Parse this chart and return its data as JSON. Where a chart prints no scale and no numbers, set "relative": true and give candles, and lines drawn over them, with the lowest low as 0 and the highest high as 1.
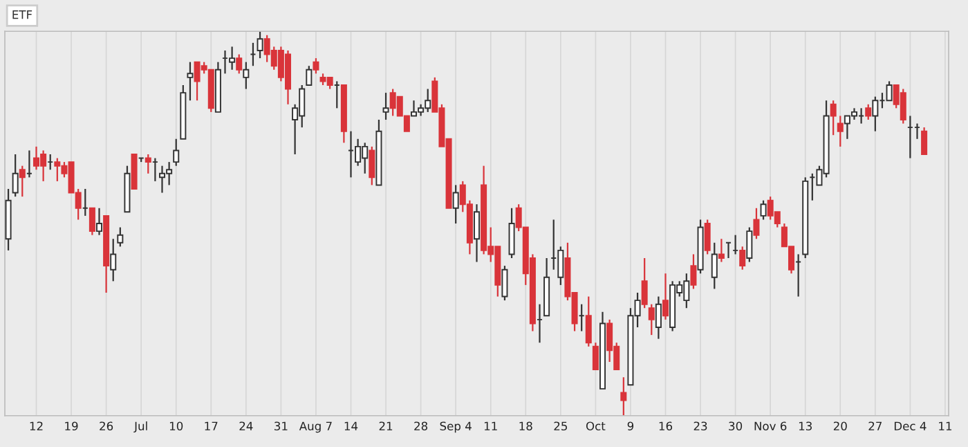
{
  "chart_data": {
    "type": "candlestick",
    "title": "ETF",
    "relative": true,
    "grid": "x",
    "tick_labels": "x",
    "categories": [
      null,
      null,
      null,
      null,
      "12",
      null,
      null,
      null,
      null,
      "19",
      null,
      null,
      null,
      null,
      "26",
      null,
      null,
      null,
      null,
      "Jul",
      null,
      null,
      null,
      null,
      "10",
      null,
      null,
      null,
      null,
      "17",
      null,
      null,
      null,
      null,
      "24",
      null,
      null,
      null,
      null,
      "31",
      null,
      null,
      null,
      null,
      "Aug 7",
      null,
      null,
      null,
      null,
      "14",
      null,
      null,
      null,
      null,
      "21",
      null,
      null,
      null,
      null,
      "28",
      null,
      null,
      null,
      null,
      "Sep 4",
      null,
      null,
      null,
      null,
      "11",
      null,
      null,
      null,
      null,
      "18",
      null,
      null,
      null,
      null,
      "25",
      null,
      null,
      null,
      null,
      "Oct",
      null,
      null,
      null,
      null,
      "9",
      null,
      null,
      null,
      null,
      "16",
      null,
      null,
      null,
      null,
      "23",
      null,
      null,
      null,
      null,
      "30",
      null,
      null,
      null,
      null,
      "Nov 6",
      null,
      null,
      null,
      null,
      "13",
      null,
      null,
      null,
      null,
      "20",
      null,
      null,
      null,
      null,
      "27",
      null,
      null,
      null,
      null,
      "Dec 4",
      null,
      null,
      null,
      null,
      "11"
    ],
    "ohlc": [
      [
        0.46,
        0.59,
        0.43,
        0.56
      ],
      [
        0.58,
        0.68,
        0.57,
        0.63
      ],
      [
        0.64,
        0.65,
        0.57,
        0.62
      ],
      [
        0.63,
        0.69,
        0.62,
        0.63
      ],
      [
        0.67,
        0.7,
        0.64,
        0.65
      ],
      [
        0.68,
        0.69,
        0.61,
        0.65
      ],
      [
        0.66,
        0.68,
        0.64,
        0.66
      ],
      [
        0.66,
        0.67,
        0.61,
        0.65
      ],
      [
        0.65,
        0.66,
        0.62,
        0.63
      ],
      [
        0.66,
        0.66,
        0.58,
        0.58
      ],
      [
        0.58,
        0.59,
        0.51,
        0.54
      ],
      [
        0.54,
        0.59,
        0.52,
        0.54
      ],
      [
        0.54,
        0.54,
        0.47,
        0.48
      ],
      [
        0.48,
        0.54,
        0.47,
        0.5
      ],
      [
        0.52,
        0.52,
        0.32,
        0.39
      ],
      [
        0.38,
        0.46,
        0.35,
        0.42
      ],
      [
        0.45,
        0.49,
        0.44,
        0.47
      ],
      [
        0.53,
        0.65,
        0.53,
        0.63
      ],
      [
        0.68,
        0.68,
        0.59,
        0.59
      ],
      [
        0.67,
        0.67,
        0.66,
        0.67
      ],
      [
        0.67,
        0.68,
        0.63,
        0.66
      ],
      [
        0.66,
        0.67,
        0.61,
        0.66
      ],
      [
        0.62,
        0.65,
        0.58,
        0.63
      ],
      [
        0.63,
        0.66,
        0.6,
        0.64
      ],
      [
        0.66,
        0.72,
        0.65,
        0.69
      ],
      [
        0.72,
        0.86,
        0.72,
        0.84
      ],
      [
        0.88,
        0.92,
        0.82,
        0.89
      ],
      [
        0.92,
        0.92,
        0.82,
        0.87
      ],
      [
        0.91,
        0.92,
        0.89,
        0.9
      ],
      [
        0.9,
        0.9,
        0.79,
        0.8
      ],
      [
        0.79,
        0.92,
        0.79,
        0.9
      ],
      [
        0.93,
        0.95,
        0.89,
        0.93
      ],
      [
        0.92,
        0.96,
        0.9,
        0.93
      ],
      [
        0.93,
        0.94,
        0.89,
        0.9
      ],
      [
        0.88,
        0.92,
        0.85,
        0.9
      ],
      [
        0.94,
        0.97,
        0.91,
        0.94
      ],
      [
        0.95,
        1.0,
        0.93,
        0.98
      ],
      [
        0.98,
        0.99,
        0.92,
        0.94
      ],
      [
        0.95,
        0.96,
        0.9,
        0.91
      ],
      [
        0.95,
        0.96,
        0.87,
        0.88
      ],
      [
        0.94,
        0.95,
        0.81,
        0.85
      ],
      [
        0.77,
        0.81,
        0.68,
        0.8
      ],
      [
        0.78,
        0.86,
        0.75,
        0.85
      ],
      [
        0.86,
        0.91,
        0.86,
        0.9
      ],
      [
        0.92,
        0.93,
        0.89,
        0.9
      ],
      [
        0.88,
        0.89,
        0.86,
        0.87
      ],
      [
        0.88,
        0.88,
        0.85,
        0.86
      ],
      [
        0.86,
        0.87,
        0.8,
        0.86
      ],
      [
        0.86,
        0.86,
        0.71,
        0.74
      ],
      [
        0.69,
        0.74,
        0.62,
        0.69
      ],
      [
        0.66,
        0.72,
        0.65,
        0.7
      ],
      [
        0.67,
        0.71,
        0.63,
        0.7
      ],
      [
        0.69,
        0.7,
        0.6,
        0.62
      ],
      [
        0.6,
        0.77,
        0.6,
        0.74
      ],
      [
        0.79,
        0.84,
        0.77,
        0.8
      ],
      [
        0.84,
        0.85,
        0.78,
        0.8
      ],
      [
        0.83,
        0.83,
        0.78,
        0.78
      ],
      [
        0.78,
        0.78,
        0.74,
        0.74
      ],
      [
        0.78,
        0.82,
        0.78,
        0.79
      ],
      [
        0.79,
        0.81,
        0.78,
        0.8
      ],
      [
        0.8,
        0.85,
        0.79,
        0.82
      ],
      [
        0.87,
        0.88,
        0.79,
        0.79
      ],
      [
        0.8,
        0.81,
        0.7,
        0.7
      ],
      [
        0.72,
        0.72,
        0.54,
        0.54
      ],
      [
        0.54,
        0.6,
        0.5,
        0.58
      ],
      [
        0.6,
        0.61,
        0.53,
        0.55
      ],
      [
        0.55,
        0.56,
        0.42,
        0.45
      ],
      [
        0.46,
        0.55,
        0.4,
        0.53
      ],
      [
        0.6,
        0.65,
        0.42,
        0.43
      ],
      [
        0.44,
        0.49,
        0.4,
        0.42
      ],
      [
        0.44,
        0.44,
        0.31,
        0.34
      ],
      [
        0.31,
        0.39,
        0.3,
        0.38
      ],
      [
        0.42,
        0.54,
        0.41,
        0.5
      ],
      [
        0.54,
        0.55,
        0.48,
        0.49
      ],
      [
        0.49,
        0.49,
        0.34,
        0.37
      ],
      [
        0.41,
        0.42,
        0.22,
        0.24
      ],
      [
        0.25,
        0.29,
        0.19,
        0.25
      ],
      [
        0.26,
        0.41,
        0.26,
        0.36
      ],
      [
        0.41,
        0.51,
        0.38,
        0.41
      ],
      [
        0.36,
        0.44,
        0.34,
        0.43
      ],
      [
        0.41,
        0.45,
        0.3,
        0.31
      ],
      [
        0.32,
        0.32,
        0.22,
        0.24
      ],
      [
        0.26,
        0.29,
        0.22,
        0.26
      ],
      [
        0.26,
        0.31,
        0.18,
        0.19
      ],
      [
        0.18,
        0.19,
        0.12,
        0.12
      ],
      [
        0.07,
        0.27,
        0.07,
        0.24
      ],
      [
        0.24,
        0.25,
        0.14,
        0.17
      ],
      [
        0.18,
        0.19,
        0.12,
        0.12
      ],
      [
        0.06,
        0.1,
        0.0,
        0.04
      ],
      [
        0.08,
        0.28,
        0.08,
        0.26
      ],
      [
        0.26,
        0.32,
        0.23,
        0.3
      ],
      [
        0.35,
        0.41,
        0.28,
        0.29
      ],
      [
        0.28,
        0.29,
        0.21,
        0.25
      ],
      [
        0.23,
        0.31,
        0.2,
        0.29
      ],
      [
        0.3,
        0.37,
        0.25,
        0.26
      ],
      [
        0.23,
        0.35,
        0.22,
        0.34
      ],
      [
        0.32,
        0.35,
        0.31,
        0.34
      ],
      [
        0.3,
        0.37,
        0.28,
        0.35
      ],
      [
        0.39,
        0.42,
        0.33,
        0.34
      ],
      [
        0.38,
        0.51,
        0.37,
        0.49
      ],
      [
        0.5,
        0.51,
        0.42,
        0.43
      ],
      [
        0.36,
        0.45,
        0.33,
        0.42
      ],
      [
        0.42,
        0.46,
        0.4,
        0.41
      ],
      [
        0.45,
        0.45,
        0.41,
        0.45
      ],
      [
        0.43,
        0.47,
        0.42,
        0.43
      ],
      [
        0.43,
        0.44,
        0.38,
        0.39
      ],
      [
        0.41,
        0.49,
        0.4,
        0.48
      ],
      [
        0.51,
        0.54,
        0.46,
        0.47
      ],
      [
        0.52,
        0.56,
        0.51,
        0.55
      ],
      [
        0.56,
        0.57,
        0.51,
        0.52
      ],
      [
        0.53,
        0.53,
        0.49,
        0.5
      ],
      [
        0.49,
        0.5,
        0.44,
        0.44
      ],
      [
        0.44,
        0.44,
        0.37,
        0.38
      ],
      [
        0.4,
        0.42,
        0.31,
        0.4
      ],
      [
        0.42,
        0.62,
        0.41,
        0.61
      ],
      [
        0.62,
        0.63,
        0.56,
        0.62
      ],
      [
        0.6,
        0.65,
        0.6,
        0.64
      ],
      [
        0.63,
        0.82,
        0.62,
        0.78
      ],
      [
        0.81,
        0.82,
        0.73,
        0.78
      ],
      [
        0.76,
        0.78,
        0.7,
        0.74
      ],
      [
        0.76,
        0.78,
        0.72,
        0.78
      ],
      [
        0.78,
        0.8,
        0.77,
        0.79
      ],
      [
        0.78,
        0.8,
        0.76,
        0.78
      ],
      [
        0.8,
        0.81,
        0.77,
        0.78
      ],
      [
        0.78,
        0.83,
        0.74,
        0.82
      ],
      [
        0.82,
        0.84,
        0.8,
        0.82
      ],
      [
        0.82,
        0.87,
        0.82,
        0.86
      ],
      [
        0.86,
        0.86,
        0.8,
        0.81
      ],
      [
        0.84,
        0.85,
        0.76,
        0.77
      ],
      [
        0.75,
        0.78,
        0.67,
        0.75
      ],
      [
        0.75,
        0.76,
        0.72,
        0.75
      ],
      [
        0.74,
        0.75,
        0.68,
        0.68
      ],
      null,
      null,
      null
    ]
  }
}
